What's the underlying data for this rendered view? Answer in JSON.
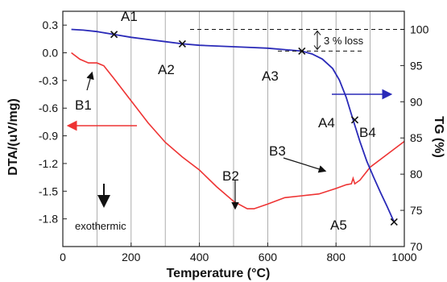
{
  "chart_data": {
    "type": "line",
    "xlabel": "Temperature (°C)",
    "ylabel_left": "DTA/(uV/mg)",
    "ylabel_right": "TG (%)",
    "x_ticks": [
      "0",
      "200",
      "400",
      "600",
      "800",
      "1000"
    ],
    "y_left_ticks": [
      "0.3",
      "0.0",
      "-0.3",
      "-0.6",
      "-0.9",
      "-1.2",
      "-1.5",
      "-1.8"
    ],
    "y_right_ticks": [
      "100",
      "95",
      "90",
      "85",
      "80",
      "75",
      "70"
    ],
    "xlim": [
      0,
      1000
    ],
    "ylim_left": [
      -2.1,
      0.45
    ],
    "ylim_right": [
      70,
      102.5
    ],
    "grid_x": [
      100,
      200,
      300,
      400,
      500,
      600,
      700,
      800,
      900,
      1000
    ],
    "colors": {
      "tg": "#2a2ab8",
      "dta": "#ee3333"
    },
    "tg": {
      "x": [
        25,
        60,
        100,
        150,
        200,
        250,
        300,
        350,
        400,
        450,
        500,
        550,
        600,
        650,
        700,
        730,
        760,
        790,
        810,
        830,
        850,
        870,
        890,
        910,
        930,
        950,
        970
      ],
      "y": [
        100.0,
        99.9,
        99.7,
        99.3,
        98.9,
        98.6,
        98.3,
        98.0,
        97.8,
        97.7,
        97.6,
        97.5,
        97.4,
        97.2,
        97.0,
        96.6,
        95.9,
        94.6,
        93.0,
        90.6,
        87.5,
        84.5,
        81.8,
        79.6,
        77.5,
        75.5,
        73.4
      ]
    },
    "dta": {
      "x": [
        25,
        50,
        75,
        100,
        120,
        150,
        200,
        250,
        300,
        350,
        400,
        450,
        500,
        540,
        560,
        600,
        650,
        700,
        750,
        800,
        830,
        845,
        850,
        855,
        870,
        900,
        950,
        1000
      ],
      "y": [
        0.0,
        -0.07,
        -0.11,
        -0.11,
        -0.14,
        -0.28,
        -0.52,
        -0.76,
        -0.97,
        -1.13,
        -1.27,
        -1.45,
        -1.61,
        -1.69,
        -1.69,
        -1.64,
        -1.57,
        -1.55,
        -1.53,
        -1.47,
        -1.43,
        -1.42,
        -1.36,
        -1.42,
        -1.38,
        -1.24,
        -1.1,
        -0.96
      ]
    },
    "annotations": {
      "A1": "A1",
      "A2": "A2",
      "A3": "A3",
      "A4": "A4",
      "A5": "A5",
      "B1": "B1",
      "B2": "B2",
      "B3": "B3",
      "B4": "B4",
      "loss": "3 % loss",
      "exothermic": "exothermic"
    },
    "markers": [
      {
        "label": "A1",
        "x": 150,
        "y": 99.3
      },
      {
        "label": "A2",
        "x": 350,
        "y": 98.0
      },
      {
        "label": "A3",
        "x": 700,
        "y": 97.0
      },
      {
        "label": "A4",
        "x": 855,
        "y": 87.5
      },
      {
        "label": "A5",
        "x": 970,
        "y": 73.4
      }
    ]
  }
}
